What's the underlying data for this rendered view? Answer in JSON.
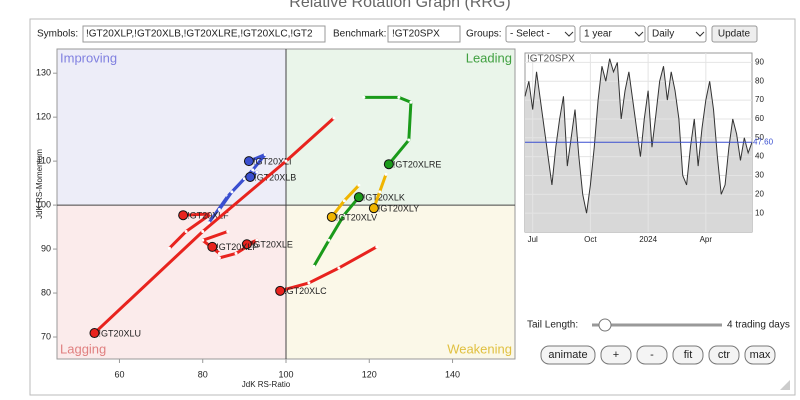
{
  "header": {
    "title": "Relative Rotation Graph (RRG)"
  },
  "toolbar": {
    "symbols_label": "Symbols:",
    "symbols": "!GT20XLP,!GT20XLB,!GT20XLRE,!GT20XLC,!GT2",
    "benchmark_label": "Benchmark:",
    "benchmark": "!GT20SPX",
    "groups_label": "Groups:",
    "groups": "- Select -",
    "period": "1 year",
    "interval": "Daily",
    "update": "Update"
  },
  "chart_data": [
    {
      "type": "rrg",
      "x_label": "JdK RS-Ratio",
      "y_label": "JdK RS-Momentum",
      "xlim": [
        45,
        155
      ],
      "ylim": [
        65,
        135.5
      ],
      "xticks": [
        60.0,
        80.0,
        100.0,
        120.0,
        140.0
      ],
      "yticks": [
        70.0,
        80.0,
        90.0,
        100.0,
        110.0,
        120.0,
        130.0
      ],
      "center": [
        100,
        100
      ],
      "quadrants": [
        {
          "name": "Improving",
          "color": "#8080e0",
          "fill": "#ededf8"
        },
        {
          "name": "Leading",
          "color": "#40a040",
          "fill": "#eaf5ea"
        },
        {
          "name": "Lagging",
          "color": "#e08080",
          "fill": "#fbebeb"
        },
        {
          "name": "Weakening",
          "color": "#e0c040",
          "fill": "#fbf8e8"
        }
      ],
      "series": [
        {
          "name": "!GT20XLI",
          "color": "#3a4fd0",
          "x": [
            81.5,
            86,
            92,
            95,
            91.1
          ],
          "y": [
            96,
            102,
            108,
            111.5,
            110
          ]
        },
        {
          "name": "!GT20XLB",
          "color": "#3a4fd0",
          "x": [
            84,
            87,
            90,
            93,
            91.4
          ],
          "y": [
            99,
            103,
            106,
            107.5,
            106.4
          ]
        },
        {
          "name": "!GT20XLF",
          "color": "#e8231e",
          "x": [
            72,
            76,
            82,
            75.3
          ],
          "y": [
            90.2,
            94,
            98,
            97.7
          ]
        },
        {
          "name": "!GT20XLE",
          "color": "#e8231e",
          "x": [
            84,
            88,
            93,
            90.6
          ],
          "y": [
            88,
            89,
            92,
            91.1
          ]
        },
        {
          "name": "!GT20XLP",
          "color": "#e8231e",
          "x": [
            86,
            80,
            84,
            82.3
          ],
          "y": [
            94,
            92,
            89,
            90.5
          ]
        },
        {
          "name": "!GT20XLU",
          "color": "#e8231e",
          "x": [
            111.5,
            100,
            80,
            54
          ],
          "y": [
            119.8,
            110,
            94,
            70.9
          ]
        },
        {
          "name": "!GT20XLC",
          "color": "#e8231e",
          "x": [
            121.8,
            112.7,
            105.5,
            98.6
          ],
          "y": [
            90.5,
            85.7,
            82.3,
            80.5
          ]
        },
        {
          "name": "!GT20XLRE",
          "color": "#1a9a1a",
          "x": [
            118.7,
            127.1,
            130,
            129.5,
            124.7
          ],
          "y": [
            124.5,
            124.5,
            123.4,
            114.8,
            109.3
          ]
        },
        {
          "name": "!GT20XLK",
          "color": "#1a9a1a",
          "x": [
            106.7,
            110.3,
            113.9,
            117.5
          ],
          "y": [
            86.1,
            92,
            97.7,
            101.8
          ]
        },
        {
          "name": "!GT20XLY",
          "color": "#f0b400",
          "x": [
            124,
            122.5,
            121.1
          ],
          "y": [
            107,
            103,
            99.3
          ]
        },
        {
          "name": "!GT20XLV",
          "color": "#f0b400",
          "x": [
            117.5,
            114,
            111
          ],
          "y": [
            104.5,
            101,
            97.3
          ]
        }
      ]
    },
    {
      "type": "line",
      "title": "!GT20SPX",
      "color": "#333333",
      "xlim": [
        0,
        59
      ],
      "ylim": [
        0,
        95
      ],
      "xticks": [
        {
          "value": 2,
          "label": "Jul"
        },
        {
          "value": 17,
          "label": "Oct"
        },
        {
          "value": 32,
          "label": "2024"
        },
        {
          "value": 47,
          "label": "Apr"
        }
      ],
      "yticks": [
        10,
        20,
        30,
        40,
        50,
        60,
        70,
        80,
        90
      ],
      "current": {
        "value": 47.6,
        "label": "47.60",
        "color": "#3a4fd0"
      },
      "values": [
        72,
        80,
        65,
        85,
        70,
        55,
        40,
        25,
        45,
        60,
        72,
        35,
        50,
        65,
        40,
        20,
        10,
        25,
        45,
        70,
        88,
        80,
        92,
        85,
        90,
        60,
        75,
        85,
        70,
        55,
        40,
        60,
        75,
        45,
        62,
        80,
        88,
        70,
        85,
        75,
        60,
        30,
        25,
        45,
        60,
        35,
        55,
        70,
        80,
        65,
        40,
        20,
        25,
        45,
        60,
        52,
        38,
        50,
        42,
        47.6
      ]
    }
  ],
  "tail": {
    "label": "Tail Length:",
    "value": "4 trading days"
  },
  "buttons": [
    "animate",
    "+",
    "-",
    "fit",
    "ctr",
    "max"
  ]
}
